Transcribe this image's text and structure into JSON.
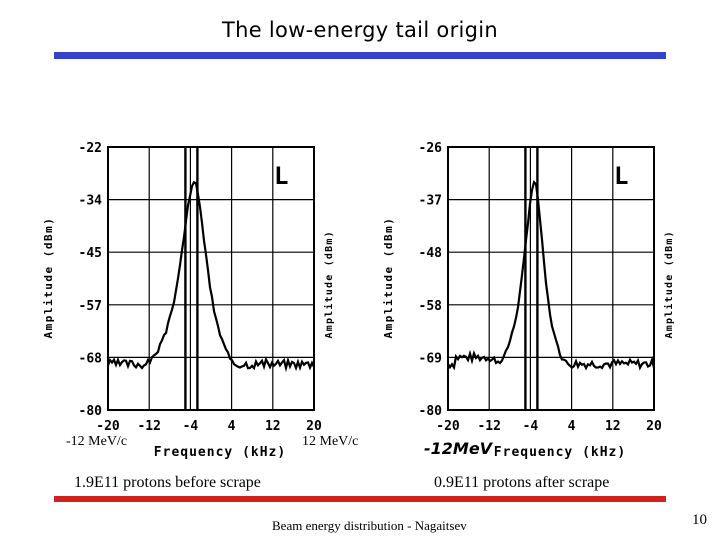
{
  "slide": {
    "title": "The low-energy tail origin",
    "accent_color": "#3344cc",
    "footer_rule_color": "#cc2222",
    "footer": "Beam energy distribution - Nagaitsev",
    "page_number": "10"
  },
  "panels": [
    {
      "marker": "L",
      "y_label": "Amplitude (dBm)",
      "y_label_right": "Amplitude (dBm)",
      "y_ticks": [
        "-22",
        "-34",
        "-45",
        "-57",
        "-68",
        "-80"
      ],
      "x_label": "Frequency (kHz)",
      "x_ticks": [
        "-20",
        "-12",
        "-4",
        "4",
        "12",
        "20"
      ],
      "low_label": "-12 MeV/c",
      "high_label": "12 MeV/c",
      "caption": "1.9E11 protons before scrape"
    },
    {
      "marker": "L",
      "y_label": "Amplitude (dBm)",
      "y_label_right": "Amplitude (dBm)",
      "y_ticks": [
        "-26",
        "-37",
        "-48",
        "-58",
        "-69",
        "-80"
      ],
      "x_label": "Frequency (kHz)",
      "x_ticks": [
        "-20",
        "-12",
        "-4",
        "4",
        "12",
        "20"
      ],
      "handwritten_label": "-12MeV",
      "caption": "0.9E11 protons after scrape"
    }
  ]
}
